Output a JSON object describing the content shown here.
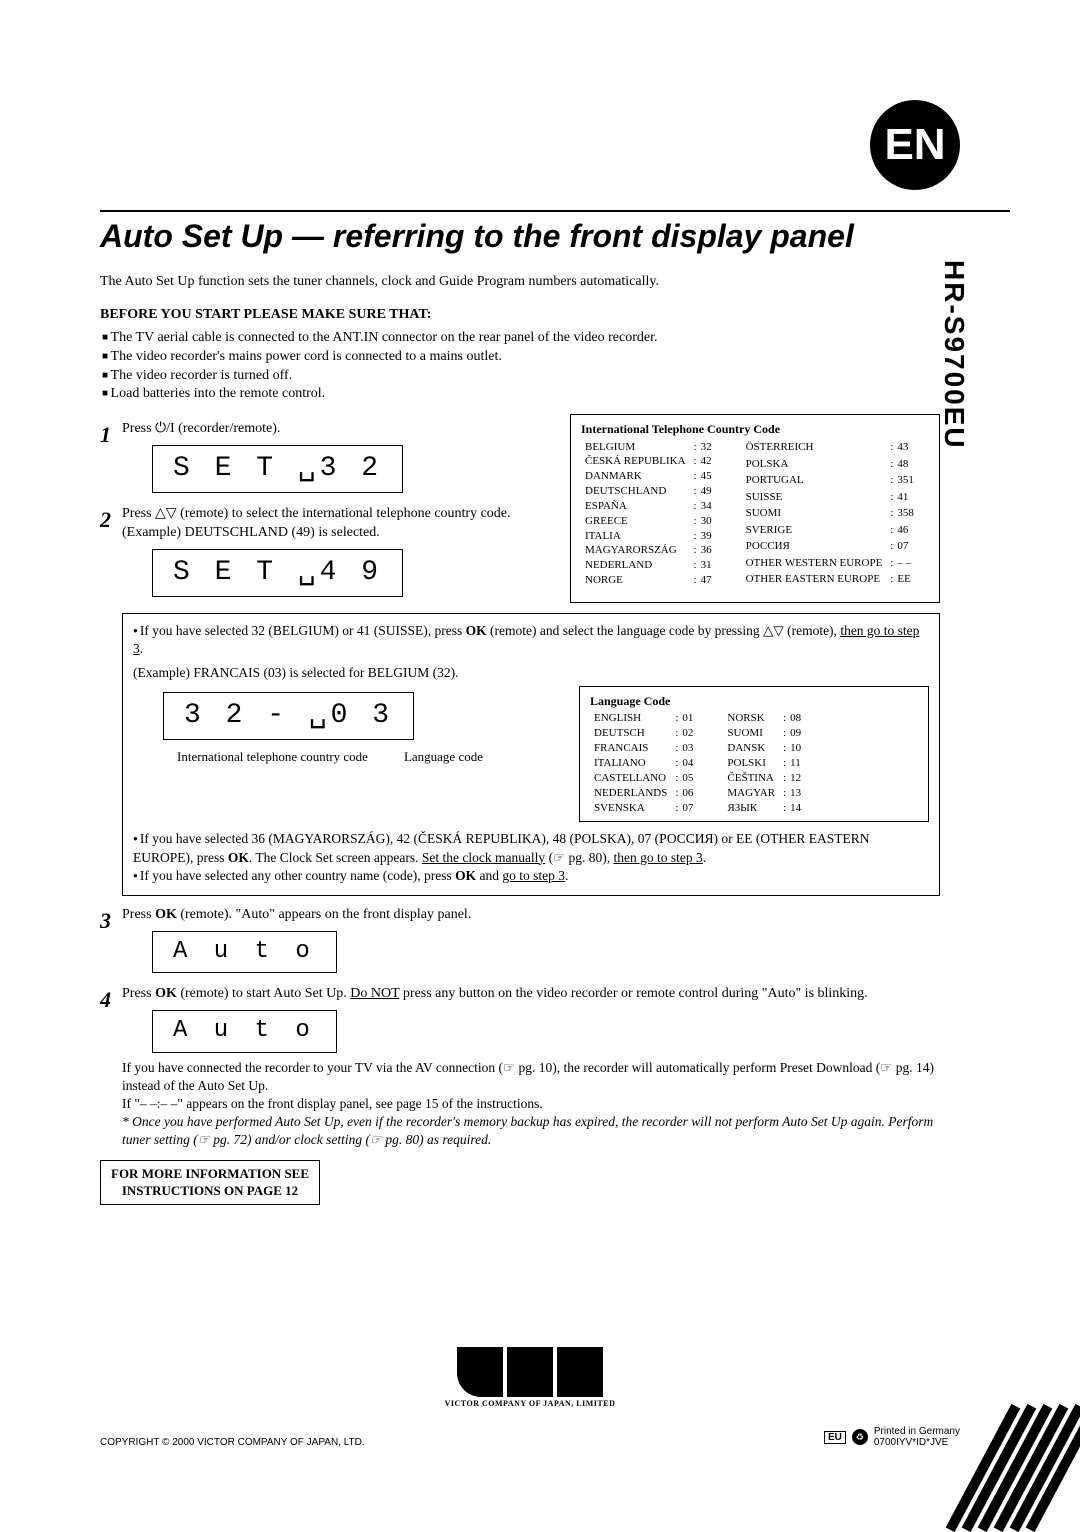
{
  "badge": "EN",
  "model": "HR-S9700EU",
  "title": "Auto Set Up — referring to the front display panel",
  "intro": "The Auto Set Up function sets the tuner channels, clock and Guide Program numbers automatically.",
  "before_head": "BEFORE YOU START PLEASE MAKE SURE THAT:",
  "before": [
    "The TV aerial cable is connected to the ANT.IN connector on the rear panel of the video recorder.",
    "The video recorder's mains power cord is connected to a mains outlet.",
    "The video recorder is turned off.",
    "Load batteries into the remote control."
  ],
  "step1": {
    "num": "1",
    "text": "Press ⏻/I (recorder/remote).",
    "lcd": "S E T ␣3 2"
  },
  "step2": {
    "num": "2",
    "text1": "Press △▽ (remote) to select the international telephone country code.",
    "text2": "(Example) DEUTSCHLAND (49) is selected.",
    "lcd": "S E T ␣4 9"
  },
  "country_box": {
    "title": "International Telephone Country Code",
    "col1": [
      [
        "BELGIUM",
        "32"
      ],
      [
        "ČESKÁ REPUBLIKA",
        "42"
      ],
      [
        "DANMARK",
        "45"
      ],
      [
        "DEUTSCHLAND",
        "49"
      ],
      [
        "ESPAÑA",
        "34"
      ],
      [
        "GREECE",
        "30"
      ],
      [
        "ITALIA",
        "39"
      ],
      [
        "MAGYARORSZÁG",
        "36"
      ],
      [
        "NEDERLAND",
        "31"
      ],
      [
        "NORGE",
        "47"
      ]
    ],
    "col2": [
      [
        "ÖSTERREICH",
        "43"
      ],
      [
        "POLSKA",
        "48"
      ],
      [
        "PORTUGAL",
        "351"
      ],
      [
        "SUISSE",
        "41"
      ],
      [
        "SUOMI",
        "358"
      ],
      [
        "SVERIGE",
        "46"
      ],
      [
        "РОССИЯ",
        "07"
      ],
      [
        "OTHER WESTERN EUROPE",
        "– –"
      ],
      [
        "OTHER EASTERN EUROPE",
        "EE"
      ]
    ]
  },
  "inset1": {
    "line1a": "If you have selected 32 (BELGIUM) or 41 (SUISSE), press ",
    "line1b": " (remote) and select the language code by pressing △▽ (remote), ",
    "line1u": "then go to step 3",
    "example": "(Example) FRANCAIS (03) is selected for BELGIUM (32).",
    "lcd": "3 2 - ␣0 3",
    "labels": {
      "left": "International telephone country code",
      "right": "Language code"
    },
    "lang_title": "Language Code",
    "lang_col1": [
      [
        "ENGLISH",
        "01"
      ],
      [
        "DEUTSCH",
        "02"
      ],
      [
        "FRANCAIS",
        "03"
      ],
      [
        "ITALIANO",
        "04"
      ],
      [
        "CASTELLANO",
        "05"
      ],
      [
        "NEDERLANDS",
        "06"
      ],
      [
        "SVENSKA",
        "07"
      ]
    ],
    "lang_col2": [
      [
        "NORSK",
        "08"
      ],
      [
        "SUOMI",
        "09"
      ],
      [
        "DANSK",
        "10"
      ],
      [
        "POLSKI",
        "11"
      ],
      [
        "ČEŠTINA",
        "12"
      ],
      [
        "MAGYAR",
        "13"
      ],
      [
        "ЯЗЫК",
        "14"
      ]
    ],
    "tail1": "If you have selected 36 (MAGYARORSZÁG), 42 (ČESKÁ REPUBLIKA), 48 (POLSKA), 07 (РОССИЯ) or EE (OTHER EASTERN EUROPE), press ",
    "tail1b": ". The Clock Set screen appears. ",
    "tail1u1": "Set the clock manually",
    "tail1c": " (☞ pg. 80), ",
    "tail1u2": "then go to step 3",
    "tail2a": "If you have selected any other country name (code), press ",
    "tail2b": " and ",
    "tail2u": "go to step 3"
  },
  "step3": {
    "num": "3",
    "text_a": "Press ",
    "text_b": " (remote). \"Auto\" appears on the front display panel.",
    "lcd": "A u t o"
  },
  "step4": {
    "num": "4",
    "text_a": "Press ",
    "text_b": " (remote) to start Auto Set Up. ",
    "text_u": "Do NOT",
    "text_c": " press any button on the video recorder or remote control during \"Auto\" is blinking.",
    "lcd": "A u t o",
    "b1": "If you have connected the recorder to your TV via the AV connection (☞ pg. 10), the recorder will automatically perform Preset Download (☞ pg. 14) instead of the Auto Set Up.",
    "b2": "If \"– –:– –\" appears on the front display panel, see page 15 of the instructions.",
    "note": "* Once you have performed Auto Set Up, even if the recorder's memory backup has expired, the recorder will not perform Auto Set Up again. Perform tuner setting (☞ pg. 72) and/or clock setting (☞ pg. 80) as required."
  },
  "morebox1": "FOR MORE INFORMATION SEE",
  "morebox2": "INSTRUCTIONS ON PAGE 12",
  "jvc_sub": "VICTOR COMPANY OF JAPAN, LIMITED",
  "copyright": "COPYRIGHT © 2000 VICTOR COMPANY OF JAPAN, LTD.",
  "printed1": "Printed in Germany",
  "printed2": "0700IYV*ID*JVE",
  "eu": "EU",
  "ok": "OK"
}
